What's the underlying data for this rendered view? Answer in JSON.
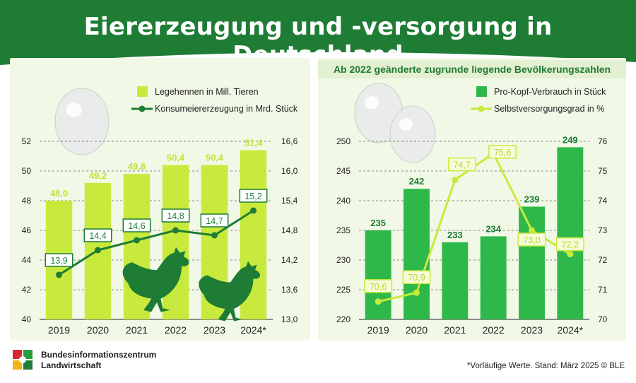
{
  "title": "Eiererzeugung und -versorgung in Deutschland",
  "colors": {
    "dark_green": "#1e7c35",
    "mid_green": "#2fb84a",
    "lime": "#c8ea3c",
    "light_bg": "#f1f8e6"
  },
  "chart_data": [
    {
      "type": "bar",
      "categories": [
        "2019",
        "2020",
        "2021",
        "2022",
        "2023",
        "2024*"
      ],
      "series": [
        {
          "name": "Legehennen in Mill. Tieren",
          "type": "bar",
          "axis": "left",
          "values": [
            48.0,
            49.2,
            49.8,
            50.4,
            50.4,
            51.4
          ],
          "labels": [
            "48,0",
            "49,2",
            "49,8",
            "50,4",
            "50,4",
            "51,4"
          ]
        },
        {
          "name": "Konsumeiererzeugung in Mrd. Stück",
          "type": "line",
          "axis": "right",
          "values": [
            13.9,
            14.4,
            14.6,
            14.8,
            14.7,
            15.2
          ],
          "labels": [
            "13,9",
            "14,4",
            "14,6",
            "14,8",
            "14,7",
            "15,2"
          ]
        }
      ],
      "ylim_left": [
        40,
        52
      ],
      "yticks_left": [
        "40",
        "42",
        "44",
        "46",
        "48",
        "50",
        "52"
      ],
      "ylim_right": [
        13.0,
        16.6
      ],
      "yticks_right": [
        "13,0",
        "13,6",
        "14,2",
        "14,8",
        "15,4",
        "16,0",
        "16,6"
      ]
    },
    {
      "type": "bar",
      "categories": [
        "2019",
        "2020",
        "2021",
        "2022",
        "2023",
        "2024*"
      ],
      "series": [
        {
          "name": "Pro-Kopf-Verbrauch in Stück",
          "type": "bar",
          "axis": "left",
          "values": [
            235,
            242,
            233,
            234,
            239,
            249
          ],
          "labels": [
            "235",
            "242",
            "233",
            "234",
            "239",
            "249"
          ]
        },
        {
          "name": "Selbstversorgungsgrad in %",
          "type": "line",
          "axis": "right",
          "values": [
            70.6,
            70.9,
            74.7,
            75.6,
            73.0,
            72.2
          ],
          "labels": [
            "70,6",
            "70,9",
            "74,7",
            "75,6",
            "73,0",
            "72,2"
          ]
        }
      ],
      "ylim_left": [
        220,
        250
      ],
      "yticks_left": [
        "220",
        "225",
        "230",
        "235",
        "240",
        "245",
        "250"
      ],
      "ylim_right": [
        70,
        76
      ],
      "yticks_right": [
        "70",
        "71",
        "72",
        "73",
        "74",
        "75",
        "76"
      ]
    }
  ],
  "note_banner": "Ab 2022 geänderte zugrunde liegende Bevölkerungszahlen",
  "brand": {
    "line1": "Bundesinformationszentrum",
    "line2": "Landwirtschaft"
  },
  "footnote": "*Vorläufige Werte. Stand: März 2025 © BLE"
}
